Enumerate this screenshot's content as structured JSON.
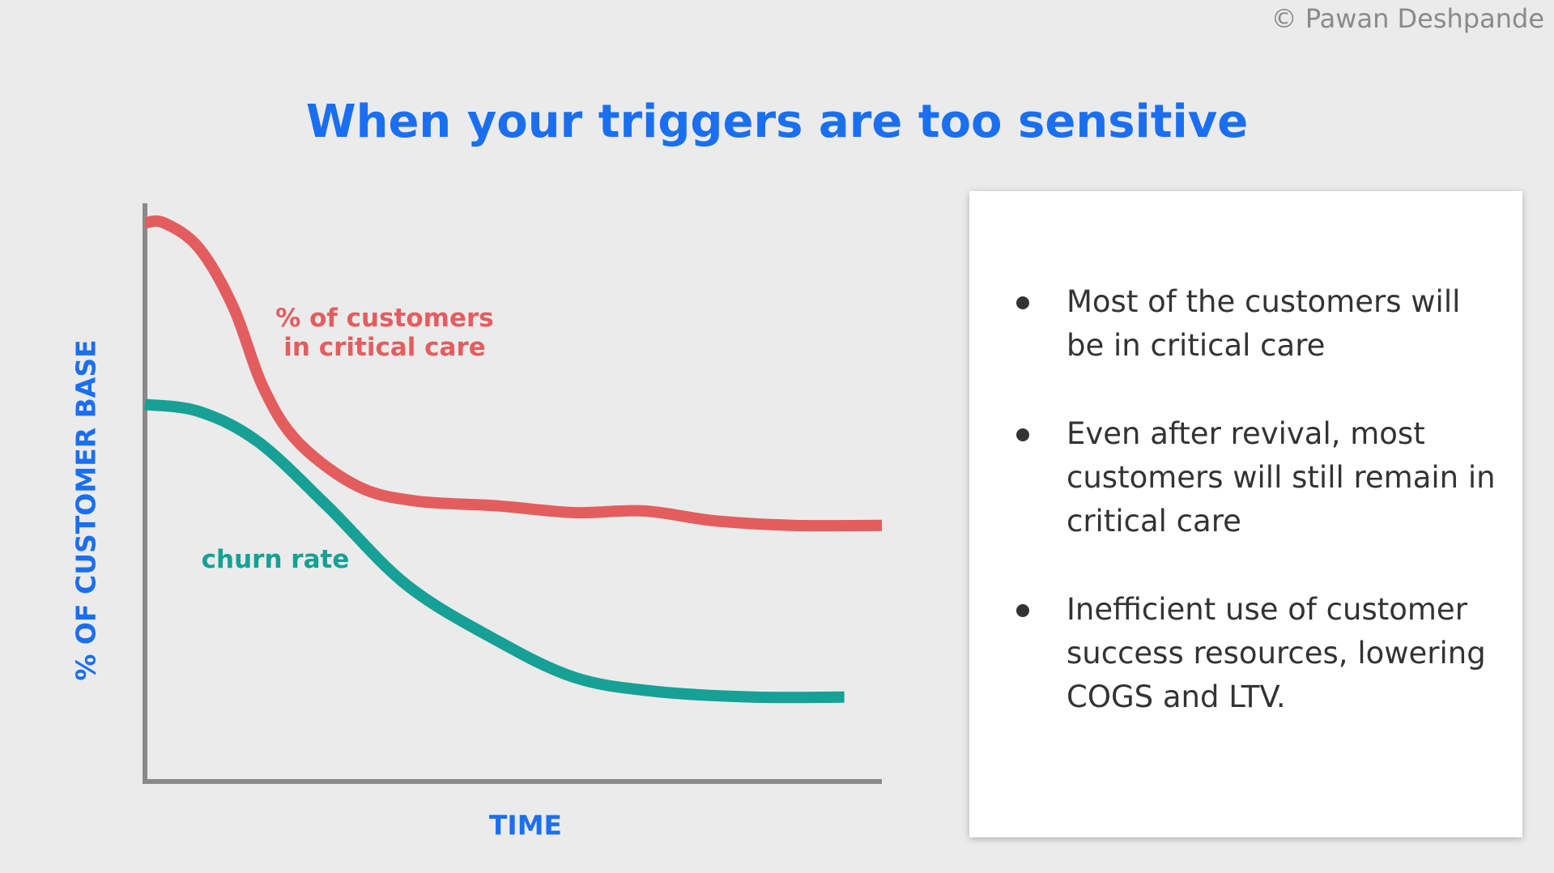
{
  "copyright": "© Pawan Deshpande",
  "chart_data": {
    "type": "line",
    "title": "When your triggers are too sensitive",
    "xlabel": "TIME",
    "ylabel": "% OF CUSTOMER BASE",
    "xlim": [
      0,
      100
    ],
    "ylim": [
      0,
      100
    ],
    "series": [
      {
        "name": "% of customers in critical care",
        "color": "#e35d5f",
        "x": [
          0,
          2.6,
          7.3,
          12.0,
          16.0,
          20.7,
          28.8,
          36.8,
          47.6,
          58.3,
          67.7,
          77.2,
          87.9,
          100
        ],
        "values": [
          96.6,
          96.6,
          92.3,
          82.0,
          68.3,
          58.8,
          51.1,
          48.5,
          47.7,
          46.5,
          46.8,
          45.1,
          44.3,
          44.3
        ]
      },
      {
        "name": "churn rate",
        "color": "#16a096",
        "x": [
          0,
          7.3,
          15.3,
          24.7,
          35.5,
          47.6,
          58.3,
          69.1,
          82.5,
          94.9
        ],
        "values": [
          65.2,
          64.0,
          58.8,
          47.7,
          34.0,
          24.5,
          18.0,
          15.6,
          14.6,
          14.6
        ]
      }
    ]
  },
  "notes": [
    "Most of the customers will be in critical care",
    "Even after revival, most customers will still remain in critical care",
    "Inefficient use of customer success resources, lowering COGS and LTV."
  ]
}
